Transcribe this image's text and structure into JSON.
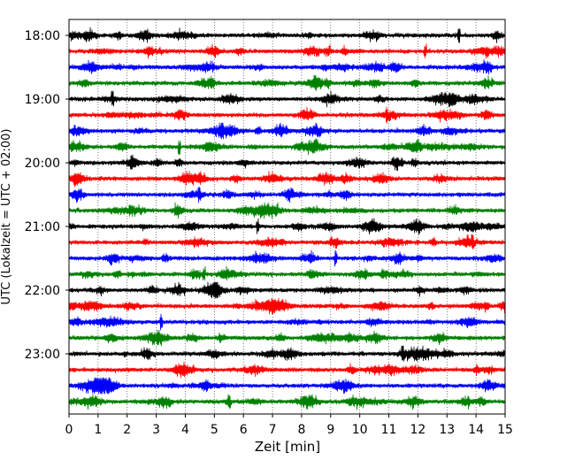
{
  "chart_data": {
    "type": "line",
    "title": "",
    "xlabel": "Zeit  [min]",
    "ylabel": "UTC (Lokalzeit = UTC + 02:00)",
    "xlim": [
      0,
      15
    ],
    "x_ticks": [
      "0",
      "1",
      "2",
      "3",
      "4",
      "5",
      "6",
      "7",
      "8",
      "9",
      "10",
      "11",
      "12",
      "13",
      "14",
      "15"
    ],
    "y_tick_labels": [
      "18:00",
      "19:00",
      "20:00",
      "21:00",
      "22:00",
      "23:00"
    ],
    "vertical_grid": true,
    "grid_style": "dotted",
    "trace_interval_min": 15,
    "trace_colors": [
      "#000000",
      "#ff0000",
      "#0000ff",
      "#008000"
    ],
    "series": [
      {
        "start": "18:00",
        "color": "#000000"
      },
      {
        "start": "18:15",
        "color": "#ff0000"
      },
      {
        "start": "18:30",
        "color": "#0000ff"
      },
      {
        "start": "18:45",
        "color": "#008000"
      },
      {
        "start": "19:00",
        "color": "#000000"
      },
      {
        "start": "19:15",
        "color": "#ff0000"
      },
      {
        "start": "19:30",
        "color": "#0000ff"
      },
      {
        "start": "19:45",
        "color": "#008000"
      },
      {
        "start": "20:00",
        "color": "#000000"
      },
      {
        "start": "20:15",
        "color": "#ff0000"
      },
      {
        "start": "20:30",
        "color": "#0000ff"
      },
      {
        "start": "20:45",
        "color": "#008000"
      },
      {
        "start": "21:00",
        "color": "#000000"
      },
      {
        "start": "21:15",
        "color": "#ff0000"
      },
      {
        "start": "21:30",
        "color": "#0000ff"
      },
      {
        "start": "21:45",
        "color": "#008000"
      },
      {
        "start": "22:00",
        "color": "#000000"
      },
      {
        "start": "22:15",
        "color": "#ff0000"
      },
      {
        "start": "22:30",
        "color": "#0000ff"
      },
      {
        "start": "22:45",
        "color": "#008000"
      },
      {
        "start": "23:00",
        "color": "#000000"
      },
      {
        "start": "23:15",
        "color": "#ff0000"
      },
      {
        "start": "23:30",
        "color": "#0000ff"
      },
      {
        "start": "23:45",
        "color": "#008000"
      }
    ]
  }
}
